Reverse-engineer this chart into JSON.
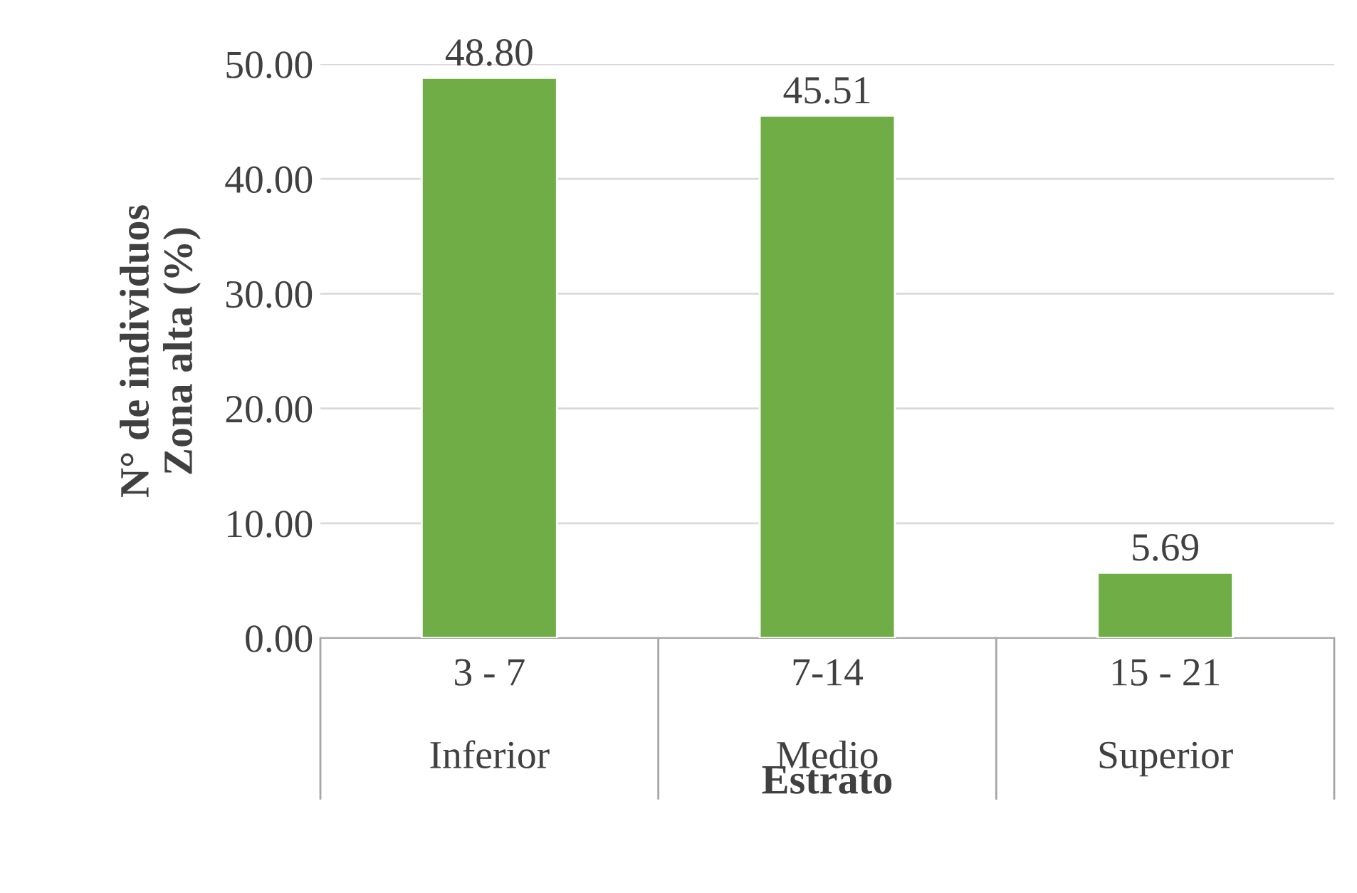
{
  "chart_data": {
    "type": "bar",
    "xlabel": "Estrato",
    "ylabel": "N° de individuos\nZona alta (%)",
    "categories": [
      "3 - 7\n\nInferior",
      "7-14\n\nMedio",
      "15 - 21\n\nSuperior"
    ],
    "values": [
      48.8,
      45.51,
      5.69
    ],
    "color": "#70ad47",
    "ylim": [
      0,
      50
    ],
    "yticks": [
      {
        "value": 0,
        "label": "0.00"
      },
      {
        "value": 10,
        "label": "10.00"
      },
      {
        "value": 20,
        "label": "20.00"
      },
      {
        "value": 30,
        "label": "30.00"
      },
      {
        "value": 40,
        "label": "40.00"
      },
      {
        "value": 50,
        "label": "50.00"
      }
    ],
    "grid": "y",
    "data_labels": true,
    "value_labels": [
      "48.80",
      "45.51",
      "5.69"
    ]
  }
}
